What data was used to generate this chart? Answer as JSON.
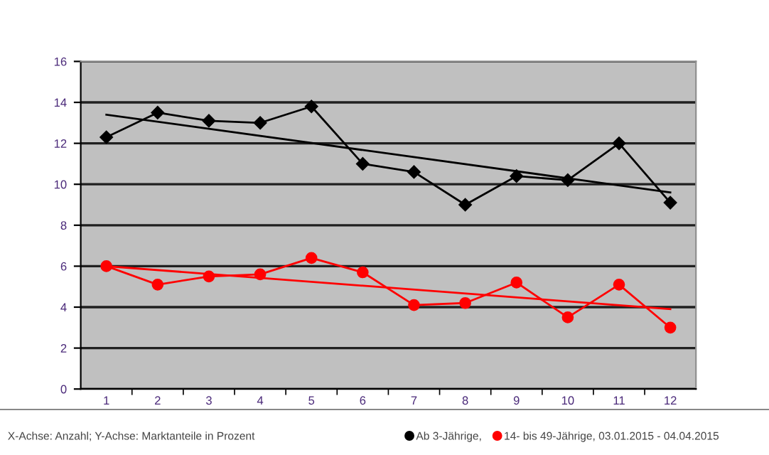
{
  "chart_data": {
    "type": "line",
    "categories": [
      "1",
      "2",
      "3",
      "4",
      "5",
      "6",
      "7",
      "8",
      "9",
      "10",
      "11",
      "12"
    ],
    "series": [
      {
        "name": "Ab 3-Jährige,",
        "color": "#000000",
        "marker": "diamond",
        "values": [
          12.3,
          13.5,
          13.1,
          13.0,
          13.8,
          11.0,
          10.6,
          9.0,
          10.4,
          10.2,
          12.0,
          9.1
        ]
      },
      {
        "name": "14- bis 49-Jährige, 03.01.2015 - 04.04.2015",
        "color": "#ff0000",
        "marker": "circle",
        "values": [
          6.0,
          5.1,
          5.5,
          5.6,
          6.4,
          5.7,
          4.1,
          4.2,
          5.2,
          3.5,
          5.1,
          3.0
        ]
      },
      {
        "color": "#000000",
        "marker": "none",
        "x": [
          "1",
          "12"
        ],
        "values": [
          13.4,
          9.6
        ]
      },
      {
        "color": "#ff0000",
        "marker": "none",
        "x": [
          "1",
          "12"
        ],
        "values": [
          6.0,
          3.9
        ]
      }
    ],
    "ylim": [
      0,
      16
    ],
    "yticks": [
      0,
      2,
      4,
      6,
      8,
      10,
      12,
      14,
      16
    ],
    "grid": "y",
    "legend": "bottom",
    "annotations": [
      "X-Achse: Anzahl; Y-Achse: Marktanteile in Prozent"
    ]
  }
}
